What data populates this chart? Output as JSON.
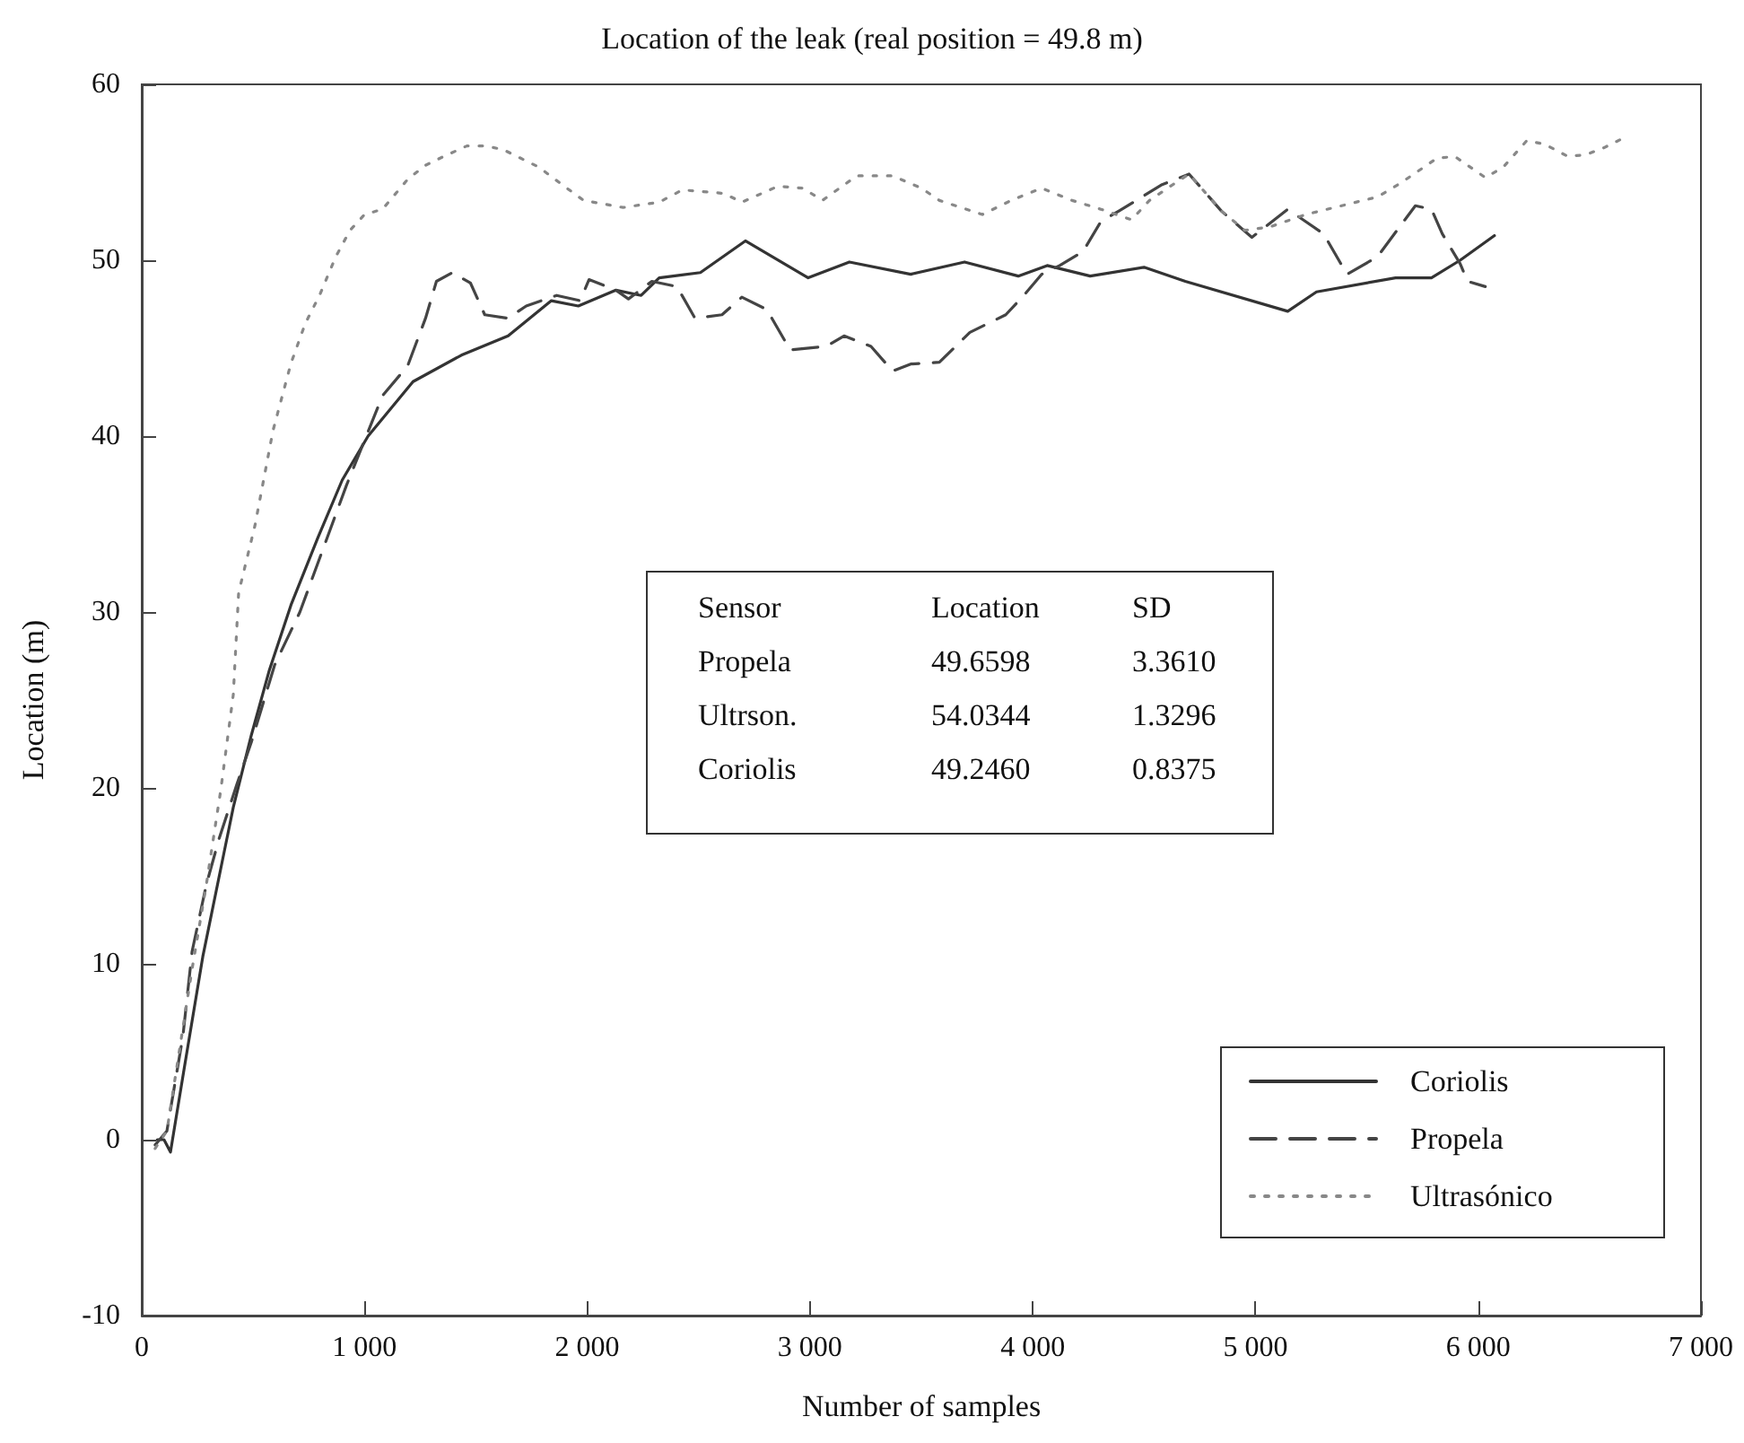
{
  "chart_data": {
    "type": "line",
    "title": "Location of the leak (real position = 49.8 m)",
    "xlabel": "Number of samples",
    "ylabel": "Location (m)",
    "xlim": [
      0,
      7000
    ],
    "ylim": [
      -10,
      60
    ],
    "xticks": [
      0,
      {
        "value": 1000,
        "label": "1 000"
      },
      {
        "value": 2000,
        "label": "2 000"
      },
      {
        "value": 3000,
        "label": "3 000"
      },
      {
        "value": 4000,
        "label": "4 000"
      },
      {
        "value": 5000,
        "label": "5 000"
      },
      {
        "value": 6000,
        "label": "6 000"
      },
      {
        "value": 7000,
        "label": "7 000"
      }
    ],
    "yticks": [
      -10,
      0,
      10,
      20,
      30,
      40,
      50,
      60
    ],
    "grid": false,
    "legend": "bottom right",
    "marker": "none",
    "annotations": [
      "Sensor",
      "Location",
      "SD",
      "Propela",
      "49.6598",
      "3.3610",
      "Ultrson.",
      "54.0344",
      "1.3296",
      "Coriolis",
      "49.2460",
      "0.8375"
    ],
    "series": [
      {
        "name": "Coriolis",
        "color": "#333333",
        "line_style": "solid",
        "x": [
          70,
          100,
          129,
          190,
          274,
          411,
          492,
          573,
          670,
          790,
          900,
          1016,
          1218,
          1435,
          1645,
          1839,
          1960,
          2129,
          2242,
          2323,
          2508,
          2710,
          2992,
          3177,
          3452,
          3694,
          3935,
          4065,
          4258,
          4500,
          4685,
          5145,
          5274,
          5629,
          5790,
          5919,
          6073
        ],
        "values": [
          0,
          0,
          -0.7,
          4,
          10.4,
          18.9,
          23,
          26.7,
          30.4,
          34.2,
          37.5,
          40,
          43.1,
          44.6,
          45.7,
          47.7,
          47.4,
          48.3,
          48,
          49,
          49.3,
          51.1,
          49,
          49.9,
          49.2,
          49.9,
          49.1,
          49.7,
          49.1,
          49.6,
          48.8,
          47.1,
          48.2,
          49,
          49,
          50,
          51.4
        ]
      },
      {
        "name": "Propela",
        "color": "#444444",
        "line_style": "dashed",
        "x": [
          60,
          113,
          185,
          226,
          290,
          347,
          427,
          492,
          597,
          710,
          919,
          1081,
          1194,
          1274,
          1323,
          1395,
          1476,
          1540,
          1645,
          1726,
          1863,
          1968,
          2008,
          2129,
          2185,
          2290,
          2403,
          2484,
          2605,
          2694,
          2806,
          2911,
          3073,
          3153,
          3274,
          3371,
          3452,
          3581,
          3718,
          3879,
          3960,
          4040,
          4121,
          4226,
          4306,
          4387,
          4581,
          4702,
          4847,
          4984,
          5145,
          5306,
          5411,
          5548,
          5653,
          5718,
          5790,
          5839,
          5919,
          5952,
          6032
        ],
        "values": [
          -0.3,
          0.5,
          5.9,
          10.7,
          14.5,
          17.1,
          20.2,
          22.6,
          27,
          30,
          37.2,
          42.3,
          44,
          46.7,
          48.8,
          49.3,
          48.7,
          46.9,
          46.7,
          47.4,
          48,
          47.7,
          48.9,
          48.3,
          47.8,
          48.8,
          48.5,
          46.7,
          46.9,
          47.9,
          47.2,
          44.9,
          45.1,
          45.7,
          45.1,
          43.7,
          44.1,
          44.2,
          45.9,
          46.9,
          48,
          49.2,
          49.7,
          50.5,
          52.2,
          52.8,
          54.3,
          54.9,
          52.8,
          51.3,
          52.9,
          51.5,
          49.2,
          50.2,
          52,
          53.1,
          52.9,
          51.5,
          49.8,
          48.8,
          48.5
        ]
      },
      {
        "name": "Ultrasónico",
        "color": "#888888",
        "line_style": "dotted",
        "x": [
          60,
          113,
          226,
          290,
          355,
          411,
          435,
          508,
          589,
          669,
          734,
          798,
          871,
          935,
          1000,
          1081,
          1194,
          1274,
          1355,
          1460,
          1540,
          1621,
          1782,
          1887,
          1984,
          2161,
          2323,
          2427,
          2613,
          2694,
          2855,
          2968,
          3056,
          3210,
          3371,
          3500,
          3581,
          3774,
          3903,
          4040,
          4177,
          4306,
          4444,
          4524,
          4629,
          4702,
          4847,
          4952,
          5065,
          5226,
          5387,
          5548,
          5653,
          5734,
          5815,
          5895,
          6032,
          6113,
          6218,
          6298,
          6403,
          6484,
          6565,
          6645
        ],
        "values": [
          -0.5,
          0.5,
          9.7,
          14.5,
          19.9,
          25.3,
          31.1,
          34.9,
          40.3,
          44.1,
          46.4,
          48,
          50.2,
          51.7,
          52.6,
          52.9,
          54.6,
          55.4,
          55.9,
          56.5,
          56.5,
          56.3,
          55.3,
          54.3,
          53.4,
          53,
          53.3,
          54,
          53.8,
          53.3,
          54.2,
          54.1,
          53.4,
          54.8,
          54.8,
          54.1,
          53.4,
          52.6,
          53.4,
          54.1,
          53.4,
          52.9,
          52.3,
          53.4,
          54.3,
          54.9,
          52.8,
          51.7,
          51.9,
          52.6,
          53.1,
          53.6,
          54.4,
          55.1,
          55.8,
          55.9,
          54.7,
          55.3,
          56.8,
          56.6,
          55.9,
          56,
          56.4,
          56.9
        ]
      }
    ]
  }
}
